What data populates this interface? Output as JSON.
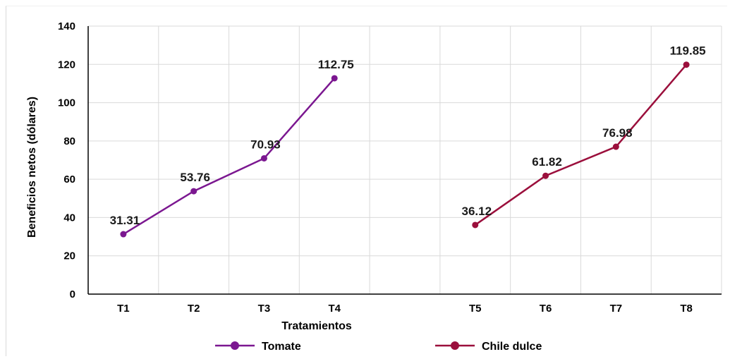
{
  "chart_data": {
    "type": "line",
    "title": "",
    "xlabel": "Tratamientos",
    "ylabel": "Beneficios netos (dólares)",
    "ylim": [
      0,
      140
    ],
    "yticks": [
      0,
      20,
      40,
      60,
      80,
      100,
      120,
      140
    ],
    "categories": [
      "T1",
      "T2",
      "T3",
      "T4",
      "",
      "T5",
      "T6",
      "T7",
      "T8"
    ],
    "grid": true,
    "legend_position": "bottom",
    "series": [
      {
        "name": "Tomate",
        "color": "#7b1790",
        "x": [
          "T1",
          "T2",
          "T3",
          "T4"
        ],
        "values": [
          31.31,
          53.76,
          70.93,
          112.75
        ],
        "labels": [
          "31.31",
          "53.76",
          "70.93",
          "112.75"
        ]
      },
      {
        "name": "Chile dulce",
        "color": "#9b0f3c",
        "x": [
          "T5",
          "T6",
          "T7",
          "T8"
        ],
        "values": [
          36.12,
          61.82,
          76.98,
          119.85
        ],
        "labels": [
          "36.12",
          "61.82",
          "76.98",
          "119.85"
        ]
      }
    ]
  }
}
